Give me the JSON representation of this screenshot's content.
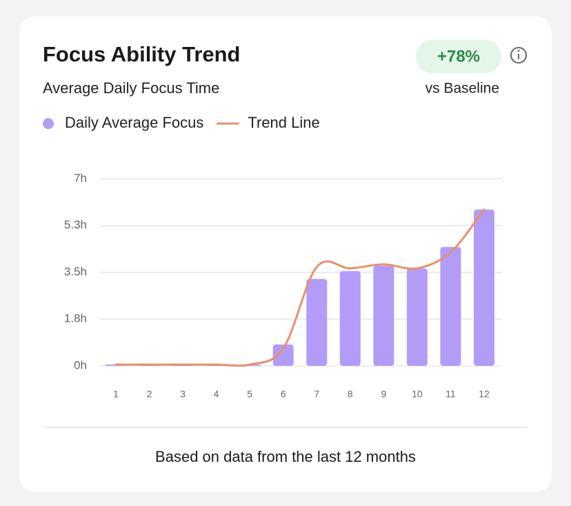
{
  "chart_data": {
    "type": "bar",
    "title": "Focus Ability Trend",
    "subtitle": "Average Daily Focus Time",
    "badge": "+78%",
    "badge_caption": "vs Baseline",
    "footnote": "Based on data from the last 12 months",
    "categories": [
      "1",
      "2",
      "3",
      "4",
      "5",
      "6",
      "7",
      "8",
      "9",
      "10",
      "11",
      "12"
    ],
    "series": [
      {
        "name": "Daily Average Focus",
        "type": "bar",
        "color": "#b39cf7",
        "values": [
          0.05,
          0.05,
          0.05,
          0.05,
          0.05,
          0.8,
          3.25,
          3.55,
          3.75,
          3.65,
          4.45,
          5.85
        ]
      },
      {
        "name": "Trend Line",
        "type": "line",
        "color": "#e8906c",
        "values": [
          0.05,
          0.05,
          0.05,
          0.05,
          0.05,
          0.65,
          3.7,
          3.65,
          3.8,
          3.65,
          4.25,
          5.85
        ]
      }
    ],
    "ylim": [
      0,
      7
    ],
    "yticks": [
      {
        "value": 0,
        "label": "0h"
      },
      {
        "value": 1.75,
        "label": "1.8h"
      },
      {
        "value": 3.5,
        "label": "3.5h"
      },
      {
        "value": 5.25,
        "label": "5.3h"
      },
      {
        "value": 7,
        "label": "7h"
      }
    ],
    "grid": true
  }
}
